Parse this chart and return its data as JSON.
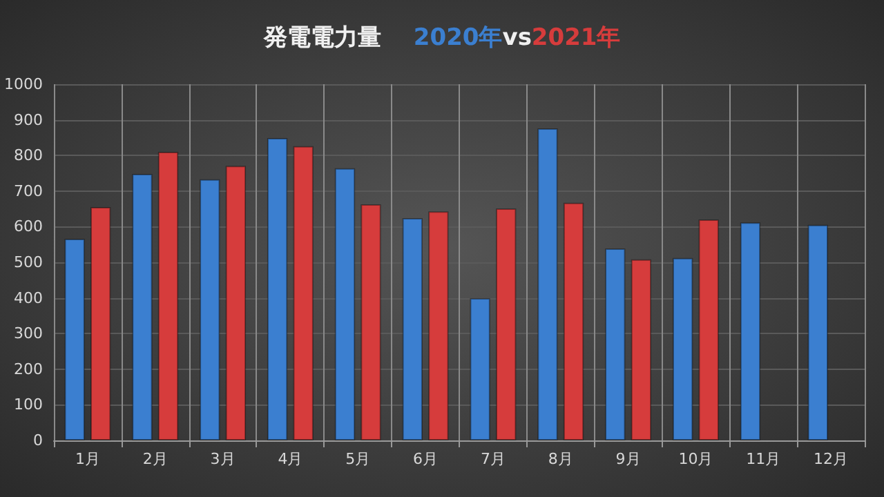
{
  "chart_data": {
    "type": "bar",
    "title": "発電電力量",
    "annotations": [
      "vs"
    ],
    "categories": [
      "1月",
      "2月",
      "3月",
      "4月",
      "5月",
      "6月",
      "7月",
      "8月",
      "9月",
      "10月",
      "11月",
      "12月"
    ],
    "series": [
      {
        "name": "2020年",
        "color": "#3b7fd0",
        "values": [
          566,
          748,
          733,
          849,
          764,
          624,
          399,
          876,
          539,
          512,
          612,
          605
        ]
      },
      {
        "name": "2021年",
        "color": "#d63c3c",
        "values": [
          655,
          810,
          771,
          826,
          663,
          643,
          651,
          667,
          508,
          620,
          null,
          null
        ]
      }
    ],
    "ylim": [
      0,
      1000
    ],
    "yticks": [
      0,
      100,
      200,
      300,
      400,
      500,
      600,
      700,
      800,
      900,
      1000
    ],
    "grid": true,
    "legend": "top"
  }
}
